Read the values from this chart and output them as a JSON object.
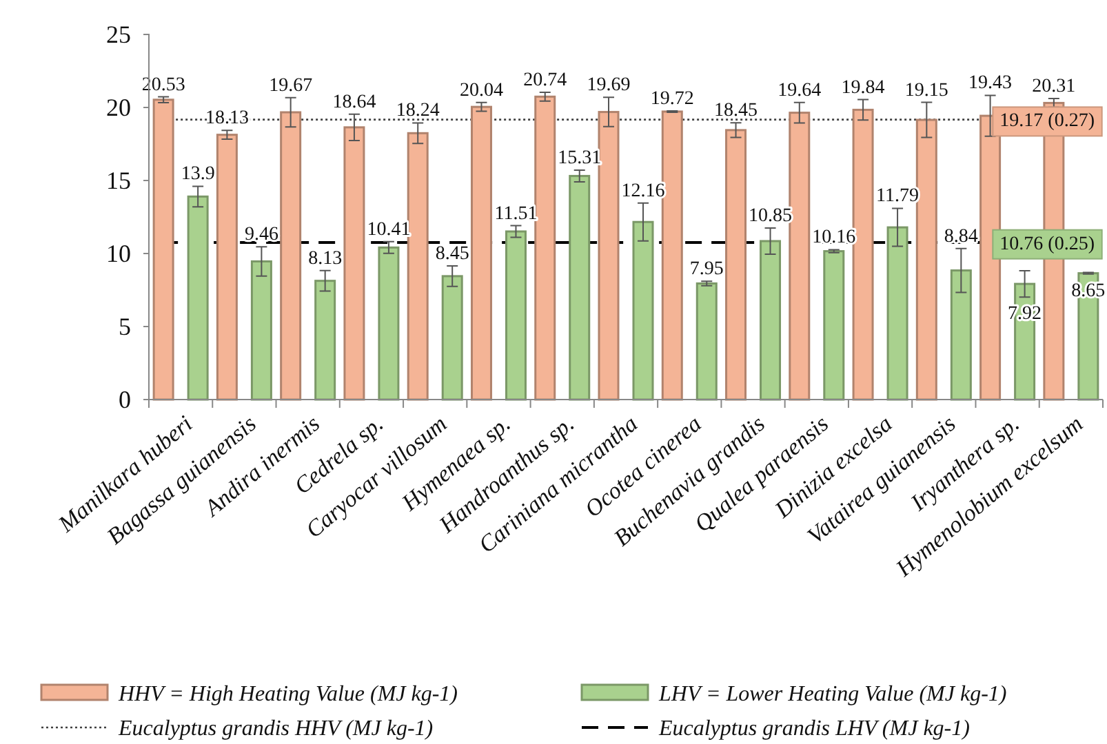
{
  "chart_data": {
    "type": "bar",
    "categories": [
      "Manilkara huberi",
      "Bagassa guianensis",
      "Andira inermis",
      "Cedrela sp.",
      "Caryocar villosum",
      "Hymenaea sp.",
      "Handroanthus sp.",
      "Cariniana micrantha",
      "Ocotea cinerea",
      "Buchenavia grandis",
      "Qualea paraensis",
      "Dinizia excelsa",
      "Vatairea guianensis",
      "Iryanthera sp.",
      "Hymenolobium excelsum"
    ],
    "series": [
      {
        "name": "HHV = High Heating Value (MJ kg-1)",
        "color": "#f4b496",
        "values": [
          20.53,
          18.13,
          19.67,
          18.64,
          18.24,
          20.04,
          20.74,
          19.69,
          19.72,
          18.45,
          19.64,
          19.84,
          19.15,
          19.43,
          20.31
        ],
        "errors": [
          0.2,
          0.3,
          1.0,
          0.9,
          0.7,
          0.3,
          0.3,
          1.0,
          0.05,
          0.5,
          0.7,
          0.7,
          1.2,
          1.4,
          0.3
        ]
      },
      {
        "name": "LHV = Lower Heating Value (MJ kg-1)",
        "color": "#a9d18e",
        "values": [
          13.9,
          9.46,
          8.13,
          10.41,
          8.45,
          11.51,
          15.31,
          12.16,
          7.95,
          10.85,
          10.16,
          11.79,
          8.84,
          7.92,
          8.65
        ],
        "errors": [
          0.7,
          1.0,
          0.7,
          0.4,
          0.7,
          0.4,
          0.4,
          1.3,
          0.15,
          0.9,
          0.1,
          1.3,
          1.5,
          0.9,
          0.05
        ]
      }
    ],
    "ref_lines": [
      {
        "axis": "y",
        "value": 19.17,
        "label": "19.17 (0.27)",
        "color": "#404040",
        "line_style": "dotted"
      },
      {
        "axis": "y",
        "value": 10.76,
        "label": "10.76 (0.25)",
        "color": "#000000",
        "line_style": "dashed"
      }
    ],
    "annotations": [
      "Eucalyptus grandis  HHV (MJ kg-1)",
      "Eucalyptus grandis  LHV (MJ kg-1)"
    ],
    "ylim": [
      0,
      25
    ],
    "yticks": [
      0,
      5,
      10,
      15,
      20,
      25
    ],
    "data_labels": true,
    "legend": "bottom",
    "grid": false
  }
}
